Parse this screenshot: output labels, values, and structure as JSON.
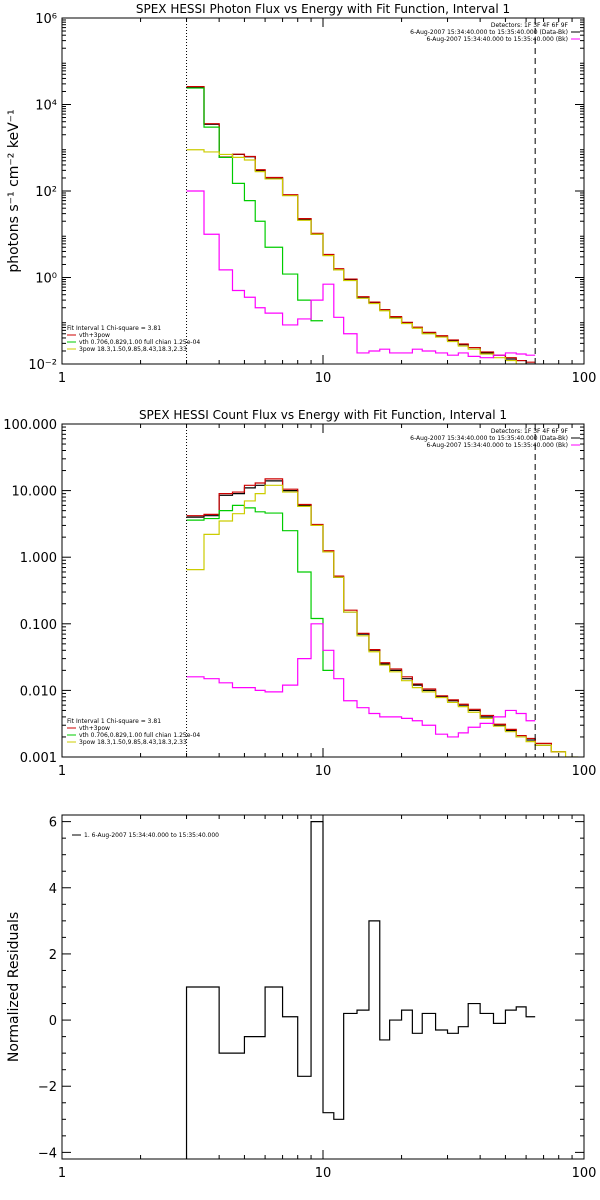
{
  "chart_data": [
    {
      "type": "line",
      "title": "SPEX HESSI Photon Flux vs Energy with Fit Function, Interval 1",
      "xlabel": "",
      "ylabel": "photons s⁻¹ cm⁻² keV⁻¹",
      "xscale": "log",
      "yscale": "log",
      "xlim": [
        1,
        100
      ],
      "ylim": [
        0.01,
        1000000
      ],
      "x_ticks": [
        1,
        10,
        100
      ],
      "x_tick_labels": [
        "1",
        "10",
        "100"
      ],
      "y_ticks": [
        0.01,
        1,
        100,
        10000,
        1000000
      ],
      "y_tick_labels": [
        "10⁻²",
        "10⁰",
        "10²",
        "10⁴",
        "10⁶"
      ],
      "vlines": [
        {
          "x": 3,
          "style": "dotted"
        },
        {
          "x": 65,
          "style": "dashed"
        }
      ],
      "info": [
        "Detectors: 1F 3F 4F 6F 9F",
        "6-Aug-2007 15:34:40.000 to 15:35:40.000 (Data-Bk)",
        "6-Aug-2007 15:34:40.000 to 15:35:40.000 (Bk)"
      ],
      "info_colors": [
        "",
        "#000000",
        "#ff00ff"
      ],
      "fit_text": [
        "Fit Interval 1    Chi-square = 3.81"
      ],
      "legend": [
        {
          "name": "vth+3pow",
          "color": "#cc0000"
        },
        {
          "name": "vth 0.706,0.829,1.00  full chian 1.25e-04",
          "color": "#00cc00"
        },
        {
          "name": "3pow 18.3,1.50,9.85,8.43,18.3,2.33",
          "color": "#cccc00"
        }
      ],
      "series": [
        {
          "color": "#000000",
          "edges": [
            3,
            3.5,
            4,
            4.5,
            5,
            5.5,
            6,
            7,
            8,
            9,
            10,
            11,
            12,
            13.5,
            15,
            16.5,
            18,
            20,
            22,
            24,
            27,
            30,
            33,
            36,
            40,
            45,
            50,
            55,
            60,
            65
          ],
          "values": [
            25000,
            3500,
            600,
            700,
            620,
            300,
            200,
            80,
            22,
            10,
            3.3,
            1.5,
            0.9,
            0.35,
            0.26,
            0.18,
            0.12,
            0.09,
            0.07,
            0.052,
            0.044,
            0.035,
            0.028,
            0.024,
            0.018,
            0.016,
            0.013,
            0.012,
            0.01
          ]
        },
        {
          "color": "#cc0000",
          "edges": [
            3,
            3.5,
            4,
            4.5,
            5,
            5.5,
            6,
            7,
            8,
            9,
            10,
            11,
            12,
            13.5,
            15,
            16.5,
            18,
            20,
            22,
            24,
            27,
            30,
            33,
            36,
            40,
            45,
            50,
            55,
            60,
            65
          ],
          "values": [
            26000,
            3600,
            610,
            710,
            630,
            310,
            205,
            82,
            23,
            10.5,
            3.4,
            1.6,
            0.92,
            0.36,
            0.27,
            0.18,
            0.125,
            0.092,
            0.071,
            0.054,
            0.045,
            0.036,
            0.029,
            0.024,
            0.019,
            0.016,
            0.014,
            0.012,
            0.011
          ]
        },
        {
          "color": "#00cc00",
          "edges": [
            3,
            3.5,
            4,
            4.5,
            5,
            5.5,
            6,
            7,
            8,
            9,
            10
          ],
          "values": [
            24000,
            3000,
            600,
            150,
            60,
            20,
            5,
            1.2,
            0.3,
            0.1
          ]
        },
        {
          "color": "#cccc00",
          "edges": [
            3,
            3.5,
            4,
            4.5,
            5,
            5.5,
            6,
            7,
            8,
            9,
            10,
            11,
            12,
            13.5,
            15,
            16.5,
            18,
            20,
            22,
            24,
            27,
            30,
            33,
            36,
            40,
            45,
            50,
            55,
            60,
            65,
            75
          ],
          "values": [
            900,
            800,
            700,
            600,
            520,
            280,
            190,
            78,
            21,
            10,
            3.2,
            1.5,
            0.85,
            0.33,
            0.25,
            0.17,
            0.115,
            0.086,
            0.067,
            0.05,
            0.042,
            0.033,
            0.026,
            0.022,
            0.017,
            0.014,
            0.012,
            0.01,
            0.009,
            0.008
          ]
        },
        {
          "color": "#ff00ff",
          "edges": [
            3,
            3.5,
            4,
            4.5,
            5,
            5.5,
            6,
            7,
            8,
            9,
            10,
            11,
            12,
            13.5,
            15,
            16.5,
            18,
            20,
            22,
            24,
            27,
            30,
            33,
            36,
            40,
            45,
            50,
            55,
            60,
            65
          ],
          "values": [
            100,
            10,
            1.5,
            0.5,
            0.35,
            0.2,
            0.15,
            0.08,
            0.11,
            0.3,
            0.7,
            0.12,
            0.05,
            0.018,
            0.02,
            0.022,
            0.018,
            0.018,
            0.022,
            0.02,
            0.018,
            0.016,
            0.018,
            0.015,
            0.014,
            0.016,
            0.018,
            0.017,
            0.016
          ]
        }
      ]
    },
    {
      "type": "line",
      "title": "SPEX HESSI Count Flux vs Energy with Fit Function, Interval 1",
      "xlabel": "",
      "ylabel": "",
      "xscale": "log",
      "yscale": "log",
      "xlim": [
        1,
        100
      ],
      "ylim": [
        0.001,
        100
      ],
      "x_ticks": [
        1,
        10,
        100
      ],
      "x_tick_labels": [
        "1",
        "10",
        "100"
      ],
      "y_ticks": [
        0.001,
        0.01,
        0.1,
        1,
        10,
        100
      ],
      "y_tick_labels": [
        "0.001",
        "0.010",
        "0.100",
        "1.000",
        "10.000",
        "100.000"
      ],
      "vlines": [
        {
          "x": 3,
          "style": "dotted"
        },
        {
          "x": 65,
          "style": "dashed"
        }
      ],
      "info": [
        "Detectors: 1F 3F 4F 6F 9F",
        "6-Aug-2007 15:34:40.000 to 15:35:40.000 (Data-Bk)",
        "6-Aug-2007 15:34:40.000 to 15:35:40.000 (Bk)"
      ],
      "info_colors": [
        "",
        "#000000",
        "#ff00ff"
      ],
      "fit_text": [
        "Fit Interval 1    Chi-square = 3.81"
      ],
      "legend": [
        {
          "name": "vth+3pow",
          "color": "#cc0000"
        },
        {
          "name": "vth 0.706,0.829,1.00  full chian 1.25e-04",
          "color": "#00cc00"
        },
        {
          "name": "3pow 18.3,1.50,9.85,8.43,18.3,2.33",
          "color": "#cccc00"
        }
      ],
      "series": [
        {
          "color": "#000000",
          "edges": [
            3,
            3.5,
            4,
            4.5,
            5,
            5.5,
            6,
            7,
            8,
            9,
            10,
            11,
            12,
            13.5,
            15,
            16.5,
            18,
            20,
            22,
            24,
            27,
            30,
            33,
            36,
            40,
            45,
            50,
            55,
            60,
            65,
            75,
            85
          ],
          "values": [
            4,
            4.2,
            8.5,
            9,
            11,
            12,
            14,
            10,
            6,
            3,
            1.2,
            0.5,
            0.15,
            0.07,
            0.04,
            0.025,
            0.02,
            0.015,
            0.012,
            0.01,
            0.008,
            0.007,
            0.006,
            0.005,
            0.004,
            0.003,
            0.0025,
            0.002,
            0.0018,
            0.0015,
            0.0012
          ]
        },
        {
          "color": "#cc0000",
          "edges": [
            3,
            3.5,
            4,
            4.5,
            5,
            5.5,
            6,
            7,
            8,
            9,
            10,
            11,
            12,
            13.5,
            15,
            16.5,
            18,
            20,
            22,
            24,
            27,
            30,
            33,
            36,
            40,
            45,
            50,
            55,
            60,
            65,
            75,
            85
          ],
          "values": [
            4.2,
            4.4,
            9,
            9.5,
            12,
            13,
            15,
            10.5,
            6.2,
            3.1,
            1.25,
            0.52,
            0.16,
            0.072,
            0.041,
            0.026,
            0.021,
            0.016,
            0.0125,
            0.0105,
            0.0083,
            0.0072,
            0.0062,
            0.0052,
            0.0042,
            0.0031,
            0.0026,
            0.0021,
            0.0019,
            0.0016,
            0.0012
          ]
        },
        {
          "color": "#00cc00",
          "edges": [
            3,
            3.5,
            4,
            4.5,
            5,
            5.5,
            6,
            7,
            8,
            9,
            10,
            11
          ],
          "values": [
            3.6,
            3.8,
            5,
            6,
            5.5,
            4.8,
            4.6,
            2.5,
            0.6,
            0.12,
            0.02
          ]
        },
        {
          "color": "#cccc00",
          "edges": [
            3,
            3.5,
            4,
            4.5,
            5,
            5.5,
            6,
            7,
            8,
            9,
            10,
            11,
            12,
            13.5,
            15,
            16.5,
            18,
            20,
            22,
            24,
            27,
            30,
            33,
            36,
            40,
            45,
            50,
            55,
            60,
            65,
            75,
            85,
            95
          ],
          "values": [
            0.65,
            2.2,
            3.5,
            4.5,
            7,
            9,
            12,
            9.5,
            5.8,
            3,
            1.2,
            0.5,
            0.15,
            0.066,
            0.038,
            0.024,
            0.019,
            0.014,
            0.011,
            0.0095,
            0.0078,
            0.0066,
            0.0057,
            0.0047,
            0.0038,
            0.0029,
            0.0024,
            0.002,
            0.0017,
            0.0015,
            0.0012,
            0.001
          ]
        },
        {
          "color": "#ff00ff",
          "edges": [
            3,
            3.5,
            4,
            4.5,
            5,
            5.5,
            6,
            7,
            8,
            9,
            10,
            11,
            12,
            13.5,
            15,
            16.5,
            18,
            20,
            22,
            24,
            27,
            30,
            33,
            36,
            40,
            45,
            50,
            55,
            60,
            65
          ],
          "values": [
            0.016,
            0.015,
            0.013,
            0.011,
            0.011,
            0.01,
            0.0095,
            0.012,
            0.03,
            0.1,
            0.04,
            0.015,
            0.007,
            0.0055,
            0.0045,
            0.004,
            0.004,
            0.0038,
            0.0035,
            0.003,
            0.0022,
            0.002,
            0.0023,
            0.0028,
            0.0032,
            0.004,
            0.005,
            0.0045,
            0.0035
          ]
        }
      ]
    },
    {
      "type": "line",
      "title": "",
      "xlabel": "",
      "ylabel": "Normalized Residuals",
      "xscale": "log",
      "yscale": "linear",
      "xlim": [
        1,
        100
      ],
      "ylim": [
        -4.2,
        6.2
      ],
      "x_ticks": [
        1,
        10,
        100
      ],
      "x_tick_labels": [
        "1",
        "10",
        "100"
      ],
      "y_ticks": [
        -4,
        -2,
        0,
        2,
        4,
        6
      ],
      "y_tick_labels": [
        "−4",
        "−2",
        "0",
        "2",
        "4",
        "6"
      ],
      "legend": [
        {
          "name": "1.  6-Aug-2007 15:34:40.000 to 15:35:40.000",
          "color": "#000000"
        }
      ],
      "series": [
        {
          "color": "#000000",
          "edges": [
            3,
            3.5,
            4,
            4.5,
            5,
            5.5,
            6,
            7,
            8,
            9,
            10,
            11,
            12,
            13.5,
            15,
            16.5,
            18,
            20,
            22,
            24,
            27,
            30,
            33,
            36,
            40,
            45,
            50,
            55,
            60,
            65
          ],
          "values": [
            1,
            1,
            -1,
            -1,
            -0.5,
            -0.5,
            1,
            0.1,
            -1.7,
            6,
            -2.8,
            -3,
            0.2,
            0.3,
            3,
            -0.6,
            0,
            0.3,
            -0.4,
            0.2,
            -0.3,
            -0.4,
            -0.2,
            0.5,
            0.2,
            -0.1,
            0.3,
            0.4,
            0.1
          ],
          "drop_to_axis": true
        }
      ]
    }
  ]
}
